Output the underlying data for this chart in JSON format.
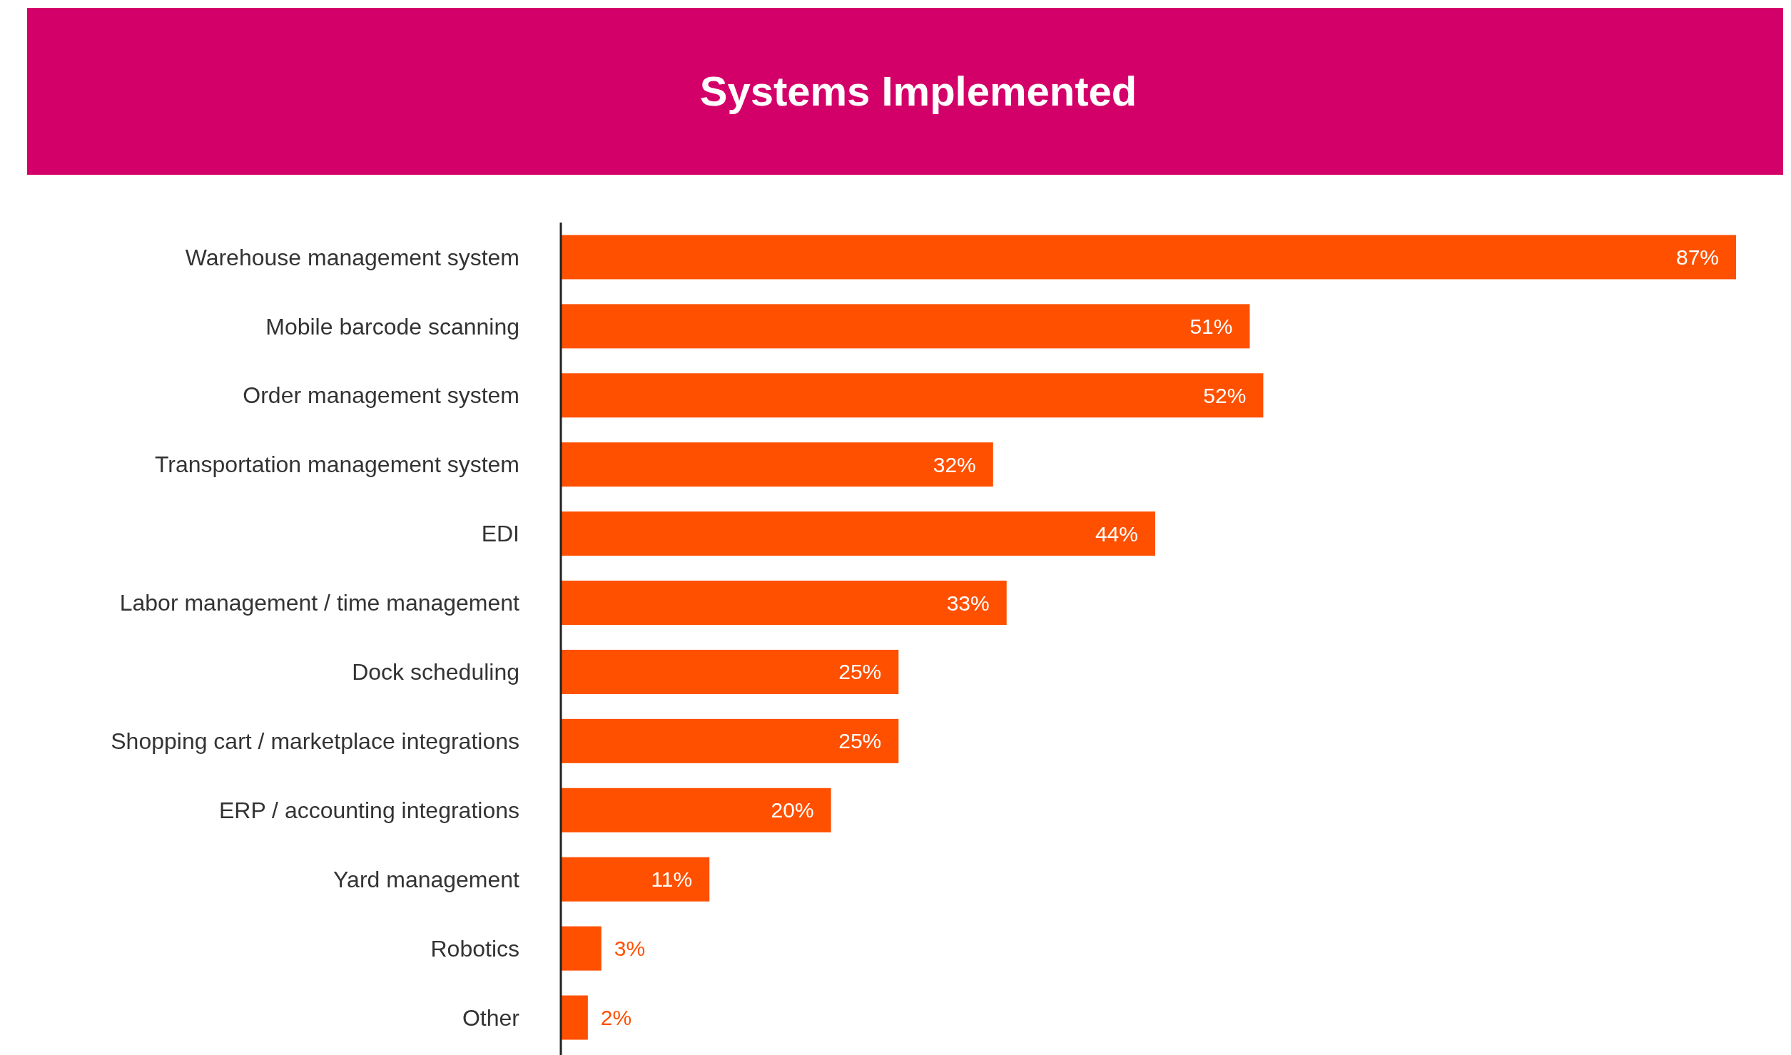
{
  "chart_data": {
    "type": "bar",
    "orientation": "horizontal",
    "title": "Systems Implemented",
    "categories": [
      "Warehouse management system",
      "Mobile barcode scanning",
      "Order management system",
      "Transportation management system",
      "EDI",
      "Labor management / time management",
      "Dock scheduling",
      "Shopping cart / marketplace integrations",
      "ERP / accounting integrations",
      "Yard management",
      "Robotics",
      "Other"
    ],
    "values": [
      87,
      51,
      52,
      32,
      44,
      33,
      25,
      25,
      20,
      11,
      3,
      2
    ],
    "value_labels": [
      "87%",
      "51%",
      "52%",
      "32%",
      "44%",
      "33%",
      "25%",
      "25%",
      "20%",
      "11%",
      "3%",
      "2%"
    ],
    "color": "#ff5000"
  }
}
